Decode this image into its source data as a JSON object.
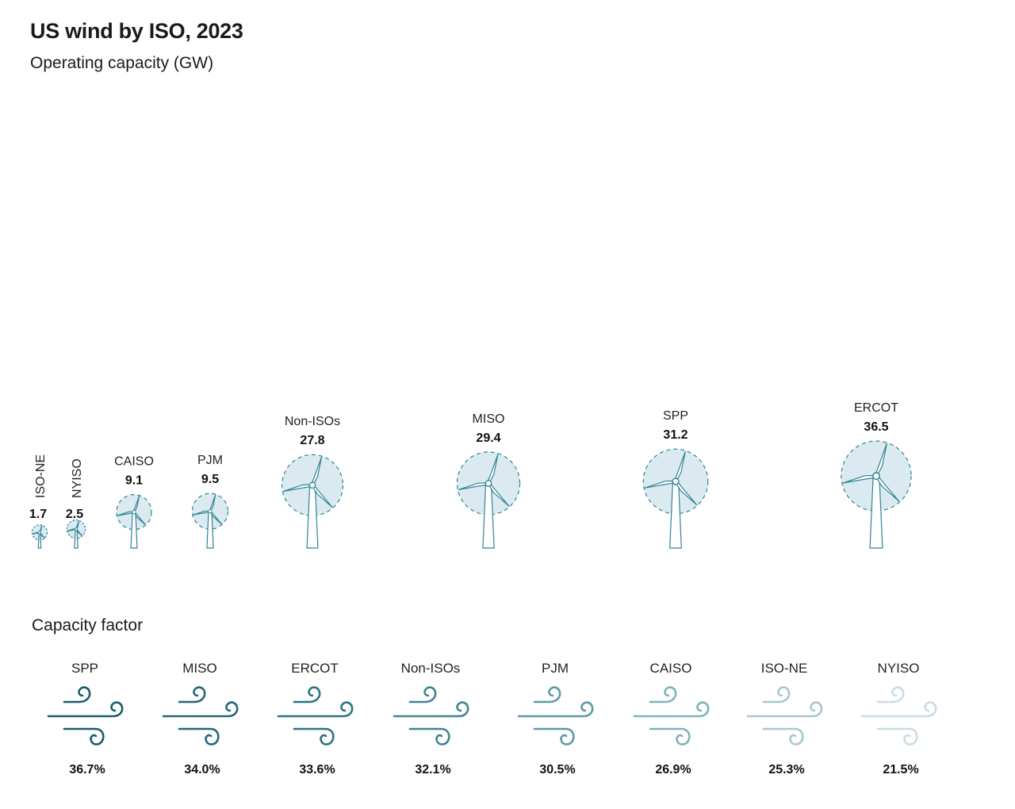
{
  "title": "US wind by ISO, 2023",
  "subtitle": "Operating capacity (GW)",
  "chart_data": [
    {
      "type": "bubble",
      "title": "US wind by ISO, 2023",
      "subtitle": "Operating capacity (GW)",
      "unit": "GW",
      "categories": [
        "ISO-NE",
        "NYISO",
        "CAISO",
        "PJM",
        "Non-ISOs",
        "MISO",
        "SPP",
        "ERCOT"
      ],
      "values": [
        1.7,
        2.5,
        9.1,
        9.5,
        27.8,
        29.4,
        31.2,
        36.5
      ],
      "value_labels": [
        "1.7",
        "2.5",
        "9.1",
        "9.5",
        "27.8",
        "29.4",
        "31.2",
        "36.5"
      ]
    },
    {
      "type": "icon-array",
      "title": "Capacity factor",
      "categories": [
        "SPP",
        "MISO",
        "ERCOT",
        "Non-ISOs",
        "PJM",
        "CAISO",
        "ISO-NE",
        "NYISO"
      ],
      "values": [
        36.7,
        34.0,
        33.6,
        32.1,
        30.5,
        26.9,
        25.3,
        21.5
      ],
      "value_labels": [
        "36.7%",
        "34.0%",
        "33.6%",
        "32.1%",
        "30.5%",
        "26.9%",
        "25.3%",
        "21.5%"
      ]
    }
  ],
  "colors": {
    "rotor_fill": "#dbeaf0",
    "outline": "#2f8595",
    "rotor_ring": "#3a8796",
    "wind_icons": [
      "#1a5b6e",
      "#23677a",
      "#2b7386",
      "#3f8494",
      "#5c9aa8",
      "#7fb1bc",
      "#a6c8d0",
      "#c7dde3"
    ]
  },
  "icons": {
    "turbine": "wind-turbine-icon",
    "wind": "wind-gust-icon"
  }
}
